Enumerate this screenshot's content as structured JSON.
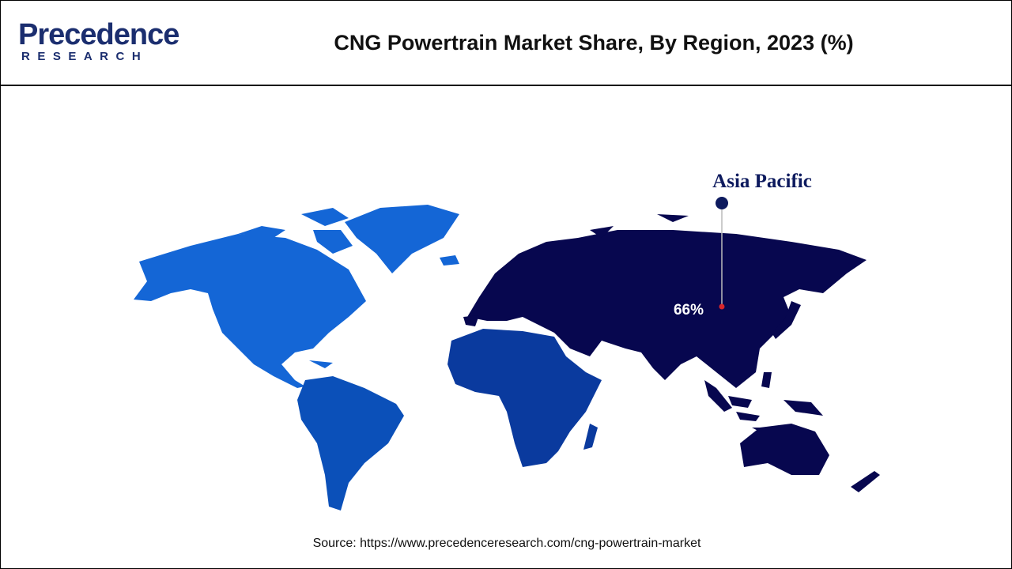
{
  "header": {
    "logo": {
      "name": "Precedence",
      "tagline": "RESEARCH"
    },
    "title": "CNG Powertrain Market Share, By Region, 2023 (%)"
  },
  "map": {
    "annotation": {
      "region": "Asia Pacific",
      "value": "66%"
    }
  },
  "footer": {
    "source": "Source: https://www.precedenceresearch.com/cng-powertrain-market"
  }
}
